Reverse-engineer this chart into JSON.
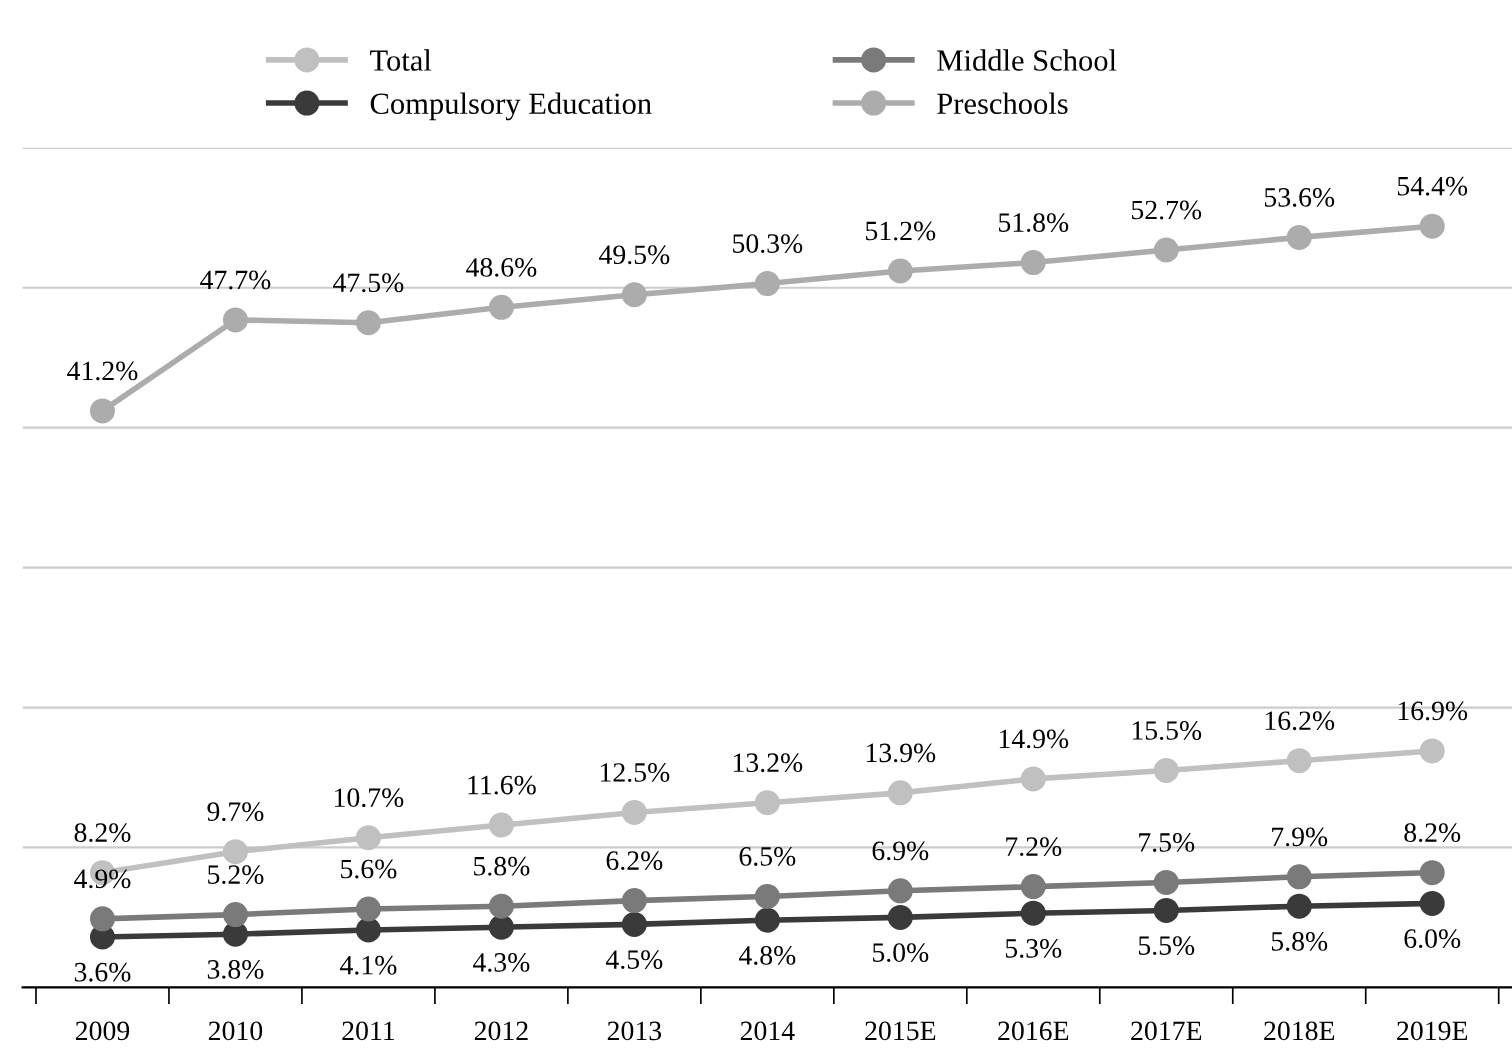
{
  "chart_data": {
    "type": "line",
    "categories": [
      "2009",
      "2010",
      "2011",
      "2012",
      "2013",
      "2014",
      "2015E",
      "2016E",
      "2017E",
      "2018E",
      "2019E"
    ],
    "series": [
      {
        "name": "Total",
        "color": "#c0c0c0",
        "values": [
          8.2,
          9.7,
          10.7,
          11.6,
          12.5,
          13.2,
          13.9,
          14.9,
          15.5,
          16.2,
          16.9
        ],
        "value_labels": [
          "8.2%",
          "9.7%",
          "10.7%",
          "11.6%",
          "12.5%",
          "13.2%",
          "13.9%",
          "14.9%",
          "15.5%",
          "16.2%",
          "16.9%"
        ]
      },
      {
        "name": "Compulsory Education",
        "color": "#3a3a3a",
        "values": [
          3.6,
          3.8,
          4.1,
          4.3,
          4.5,
          4.8,
          5.0,
          5.3,
          5.5,
          5.8,
          6.0
        ],
        "value_labels": [
          "3.6%",
          "3.8%",
          "4.1%",
          "4.3%",
          "4.5%",
          "4.8%",
          "5.0%",
          "5.3%",
          "5.5%",
          "5.8%",
          "6.0%"
        ]
      },
      {
        "name": "Middle School",
        "color": "#7a7a7a",
        "values": [
          4.9,
          5.2,
          5.6,
          5.8,
          6.2,
          6.5,
          6.9,
          7.2,
          7.5,
          7.9,
          8.2
        ],
        "value_labels": [
          "4.9%",
          "5.2%",
          "5.6%",
          "5.8%",
          "6.2%",
          "6.5%",
          "6.9%",
          "7.2%",
          "7.5%",
          "7.9%",
          "8.2%"
        ]
      },
      {
        "name": "Preschools",
        "color": "#acacac",
        "values": [
          41.2,
          47.7,
          47.5,
          48.6,
          49.5,
          50.3,
          51.2,
          51.8,
          52.7,
          53.6,
          54.4
        ],
        "value_labels": [
          "41.2%",
          "47.7%",
          "47.5%",
          "48.6%",
          "49.5%",
          "50.3%",
          "51.2%",
          "51.8%",
          "52.7%",
          "53.6%",
          "54.4%"
        ]
      }
    ],
    "ylim": [
      0,
      60
    ],
    "yticks": [
      {
        "value": 0,
        "label": null
      },
      {
        "value": 10,
        "label": null
      },
      {
        "value": 20,
        "label": null
      },
      {
        "value": 30,
        "label": null
      },
      {
        "value": 40,
        "label": null
      },
      {
        "value": 50,
        "label": null
      },
      {
        "value": 60,
        "label": null
      }
    ],
    "tick_labels": "x",
    "grid": "y",
    "legend": "top",
    "marker": "circle",
    "line_style": "solid"
  }
}
